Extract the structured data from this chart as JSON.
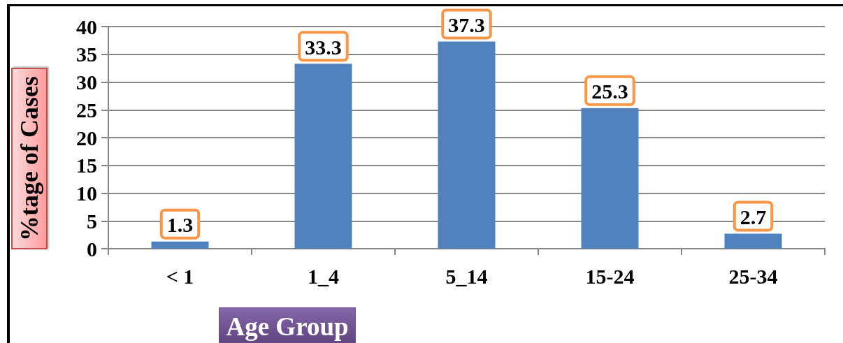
{
  "chart_data": {
    "type": "bar",
    "xlabel": "Age Group",
    "ylabel": "%tage of Cases",
    "categories": [
      "< 1",
      "1_4",
      "5_14",
      "15-24",
      "25-34"
    ],
    "values": [
      1.3,
      33.3,
      37.3,
      25.3,
      2.7
    ],
    "color": "#4f81bd",
    "ylim": [
      0,
      40
    ],
    "yticks": [
      0,
      5,
      10,
      15,
      20,
      25,
      30,
      35,
      40
    ],
    "grid": "y",
    "data_labels": true
  }
}
